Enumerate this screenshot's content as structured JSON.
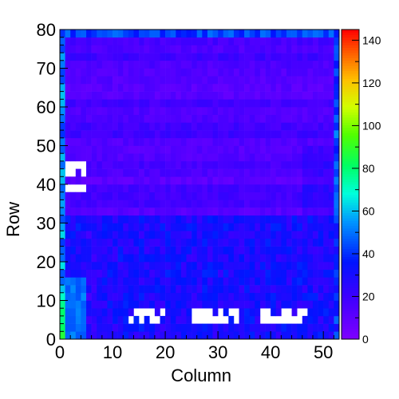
{
  "chart_data": {
    "type": "heatmap",
    "xlabel": "Column",
    "ylabel": "Row",
    "xlim": [
      0,
      53
    ],
    "ylim": [
      0,
      80
    ],
    "x_ticks": [
      0,
      10,
      20,
      30,
      40,
      50
    ],
    "y_ticks": [
      0,
      10,
      20,
      30,
      40,
      50,
      60,
      70,
      80
    ],
    "colorbar": {
      "min": 0,
      "max": 145,
      "ticks": [
        0,
        20,
        40,
        60,
        80,
        100,
        120,
        140
      ],
      "palette": "rainbow (violet → blue → cyan → green → yellow → orange → red)"
    },
    "grid": "53 columns × 80 rows (2 rows per bin)",
    "regions": [
      {
        "description": "upper half (rows 32–80)",
        "typical_value": 15
      },
      {
        "description": "lower half (rows 0–32)",
        "typical_value": 32
      },
      {
        "description": "left strip column 0 near bottom",
        "typical_value": 75
      },
      {
        "description": "empty cells rows ~37–44, columns 1–4",
        "value": "empty"
      },
      {
        "description": "empty cells rows ~3–7, columns 12–19, 25–33, 38–46",
        "value": "empty"
      }
    ]
  }
}
